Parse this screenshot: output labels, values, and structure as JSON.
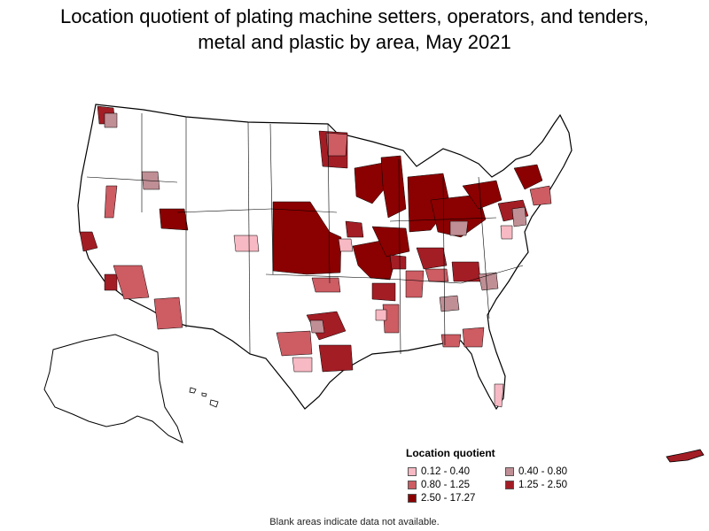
{
  "title_line1": "Location quotient of plating machine setters, operators, and tenders,",
  "title_line2": "metal and plastic by area, May 2021",
  "legend": {
    "title": "Location quotient",
    "items": [
      {
        "label": "0.12 - 0.40",
        "color": "#f7b9c3"
      },
      {
        "label": "0.40 - 0.80",
        "color": "#bf8f95"
      },
      {
        "label": "0.80 - 1.25",
        "color": "#cd5c63"
      },
      {
        "label": "1.25 - 2.50",
        "color": "#a31d25"
      },
      {
        "label": "2.50 - 17.27",
        "color": "#8b0000"
      }
    ]
  },
  "footnote": "Blank areas indicate data not available.",
  "colors": {
    "no_data": "#ffffff",
    "border": "#000000"
  }
}
